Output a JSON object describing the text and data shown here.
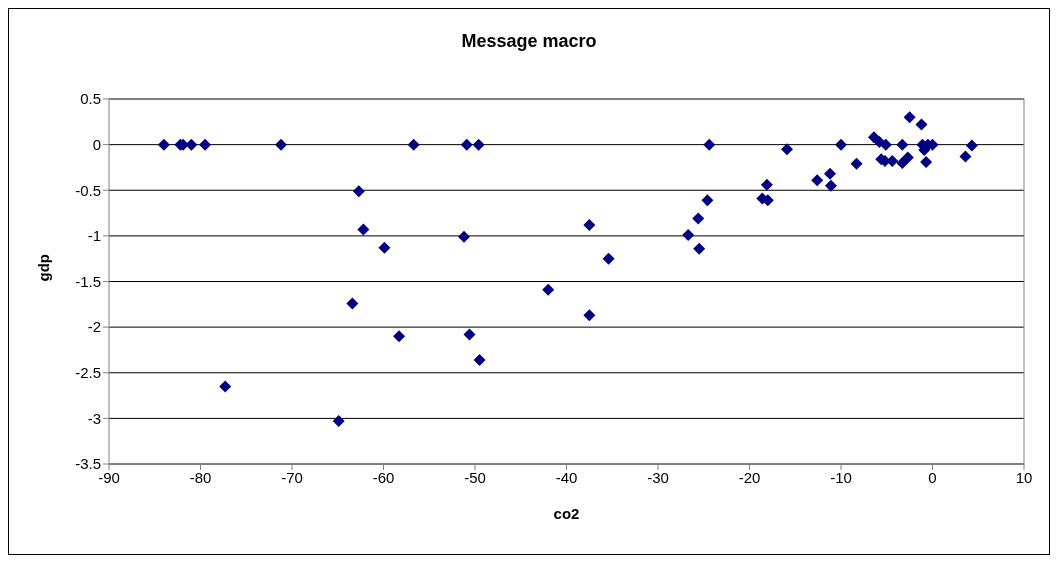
{
  "chart_data": {
    "type": "scatter",
    "title": "Message macro",
    "xlabel": "co2",
    "ylabel": "gdp",
    "marker": "diamond",
    "grid": "y",
    "legend": false,
    "xlim": [
      -90,
      10
    ],
    "xticks": [
      -90,
      -80,
      -70,
      -60,
      -50,
      -40,
      -30,
      -20,
      -10,
      0,
      10
    ],
    "ylim": [
      -3.5,
      0.5
    ],
    "yticks": [
      -3.5,
      -3,
      -2.5,
      -2,
      -1.5,
      -1,
      -0.5,
      0,
      0.5
    ],
    "series": [
      {
        "color": "#000080",
        "x": [
          -84.0,
          -82.2,
          -81.9,
          -81.0,
          -79.5,
          -71.2,
          -56.7,
          -50.9,
          -49.6,
          -62.7,
          -62.2,
          -59.9,
          -51.2,
          -42.0,
          -63.4,
          -58.3,
          -50.6,
          -49.5,
          -77.3,
          -64.9,
          -37.5,
          -35.4,
          -37.5,
          -24.4,
          -24.6,
          -25.6,
          -26.7,
          -25.5,
          -15.9,
          -18.6,
          -18.1,
          -18.0,
          -12.6,
          -11.2,
          -11.1,
          -10.0,
          -8.3,
          -6.4,
          -5.8,
          -5.1,
          -5.6,
          -5.2,
          -4.4,
          -3.3,
          -2.7,
          -3.3,
          -2.5,
          -1.2,
          -0.7,
          -0.9,
          -0.5,
          0,
          -1.1,
          3.6,
          4.3
        ],
        "values": [
          0,
          0,
          0,
          0,
          0,
          0,
          0,
          0,
          0,
          -0.51,
          -0.93,
          -1.13,
          -1.01,
          -1.59,
          -1.74,
          -2.1,
          -2.08,
          -2.36,
          -2.65,
          -3.03,
          -0.88,
          -1.25,
          -1.87,
          0,
          -0.61,
          -0.81,
          -0.99,
          -1.14,
          -0.05,
          -0.59,
          -0.44,
          -0.61,
          -0.39,
          -0.32,
          -0.45,
          0,
          -0.21,
          0.08,
          0.03,
          0,
          -0.16,
          -0.18,
          -0.18,
          -0.2,
          -0.14,
          0,
          0.3,
          0.22,
          -0.19,
          -0.06,
          0,
          0,
          0,
          -0.13,
          -0.01
        ]
      }
    ]
  }
}
